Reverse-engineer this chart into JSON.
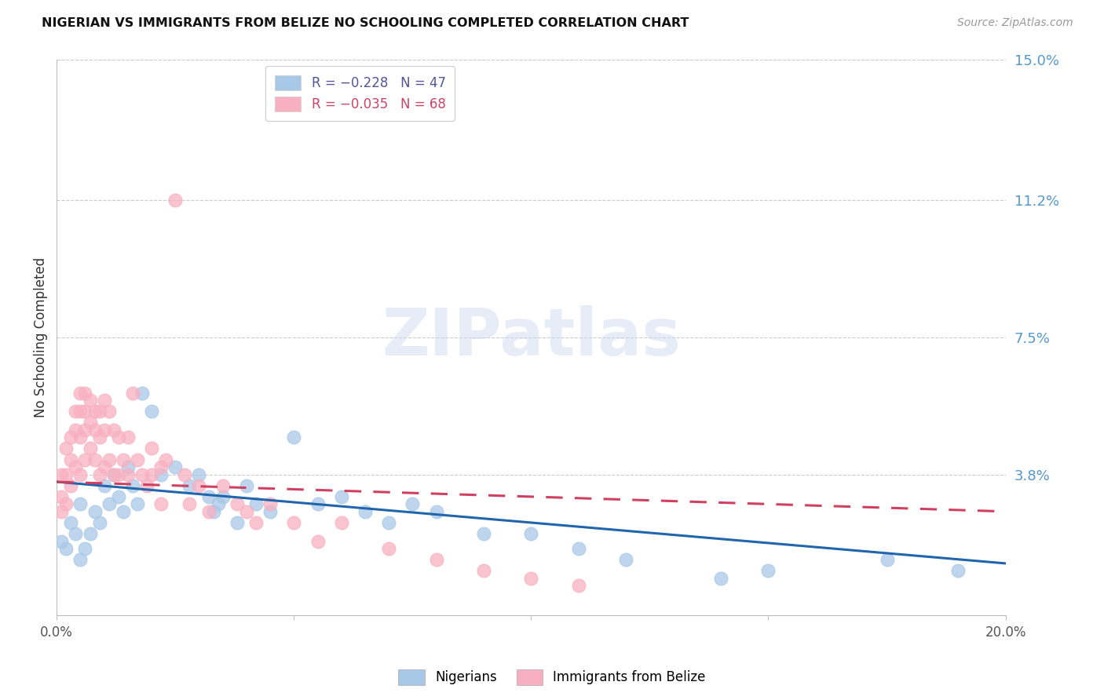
{
  "title": "NIGERIAN VS IMMIGRANTS FROM BELIZE NO SCHOOLING COMPLETED CORRELATION CHART",
  "source": "Source: ZipAtlas.com",
  "ylabel": "No Schooling Completed",
  "xlim": [
    0.0,
    0.2
  ],
  "ylim": [
    0.0,
    0.15
  ],
  "xtick_positions": [
    0.0,
    0.05,
    0.1,
    0.15,
    0.2
  ],
  "xtick_labels": [
    "0.0%",
    "",
    "",
    "",
    "20.0%"
  ],
  "ytick_positions": [
    0.15,
    0.112,
    0.075,
    0.038
  ],
  "ytick_labels": [
    "15.0%",
    "11.2%",
    "7.5%",
    "3.8%"
  ],
  "watermark_text": "ZIPatlas",
  "bg_color": "#ffffff",
  "grid_color": "#cccccc",
  "nigerian_dot_color": "#a8c8e8",
  "belize_dot_color": "#f8b0c0",
  "nigerian_line_color": "#2166ac",
  "belize_line_color": "#d04060",
  "legend_top": [
    {
      "R": "-0.228",
      "N": "47",
      "color": "#a8c8e8"
    },
    {
      "R": "-0.035",
      "N": "68",
      "color": "#f8b0c0"
    }
  ],
  "nigerian_x": [
    0.001,
    0.002,
    0.003,
    0.004,
    0.005,
    0.005,
    0.006,
    0.007,
    0.008,
    0.009,
    0.01,
    0.011,
    0.012,
    0.013,
    0.014,
    0.015,
    0.016,
    0.017,
    0.018,
    0.02,
    0.022,
    0.025,
    0.028,
    0.03,
    0.032,
    0.033,
    0.034,
    0.035,
    0.038,
    0.04,
    0.042,
    0.045,
    0.05,
    0.055,
    0.06,
    0.065,
    0.07,
    0.075,
    0.08,
    0.09,
    0.1,
    0.11,
    0.12,
    0.14,
    0.15,
    0.175,
    0.19
  ],
  "nigerian_y": [
    0.02,
    0.018,
    0.025,
    0.022,
    0.015,
    0.03,
    0.018,
    0.022,
    0.028,
    0.025,
    0.035,
    0.03,
    0.038,
    0.032,
    0.028,
    0.04,
    0.035,
    0.03,
    0.06,
    0.055,
    0.038,
    0.04,
    0.035,
    0.038,
    0.032,
    0.028,
    0.03,
    0.032,
    0.025,
    0.035,
    0.03,
    0.028,
    0.048,
    0.03,
    0.032,
    0.028,
    0.025,
    0.03,
    0.028,
    0.022,
    0.022,
    0.018,
    0.015,
    0.01,
    0.012,
    0.015,
    0.012
  ],
  "belize_x": [
    0.001,
    0.001,
    0.001,
    0.002,
    0.002,
    0.002,
    0.003,
    0.003,
    0.003,
    0.004,
    0.004,
    0.004,
    0.005,
    0.005,
    0.005,
    0.005,
    0.006,
    0.006,
    0.006,
    0.006,
    0.007,
    0.007,
    0.007,
    0.008,
    0.008,
    0.008,
    0.009,
    0.009,
    0.009,
    0.01,
    0.01,
    0.01,
    0.011,
    0.011,
    0.012,
    0.012,
    0.013,
    0.013,
    0.014,
    0.015,
    0.015,
    0.016,
    0.017,
    0.018,
    0.019,
    0.02,
    0.02,
    0.022,
    0.022,
    0.023,
    0.025,
    0.027,
    0.028,
    0.03,
    0.032,
    0.035,
    0.038,
    0.04,
    0.042,
    0.045,
    0.05,
    0.055,
    0.06,
    0.07,
    0.08,
    0.09,
    0.1,
    0.11
  ],
  "belize_y": [
    0.038,
    0.032,
    0.028,
    0.045,
    0.038,
    0.03,
    0.048,
    0.042,
    0.035,
    0.055,
    0.05,
    0.04,
    0.06,
    0.055,
    0.048,
    0.038,
    0.06,
    0.055,
    0.05,
    0.042,
    0.058,
    0.052,
    0.045,
    0.055,
    0.05,
    0.042,
    0.055,
    0.048,
    0.038,
    0.058,
    0.05,
    0.04,
    0.055,
    0.042,
    0.05,
    0.038,
    0.048,
    0.038,
    0.042,
    0.048,
    0.038,
    0.06,
    0.042,
    0.038,
    0.035,
    0.045,
    0.038,
    0.04,
    0.03,
    0.042,
    0.112,
    0.038,
    0.03,
    0.035,
    0.028,
    0.035,
    0.03,
    0.028,
    0.025,
    0.03,
    0.025,
    0.02,
    0.025,
    0.018,
    0.015,
    0.012,
    0.01,
    0.008
  ],
  "nig_line_x0": 0.0,
  "nig_line_y0": 0.036,
  "nig_line_x1": 0.2,
  "nig_line_y1": 0.014,
  "bel_line_x0": 0.0,
  "bel_line_y0": 0.036,
  "bel_line_x1": 0.2,
  "bel_line_y1": 0.028
}
